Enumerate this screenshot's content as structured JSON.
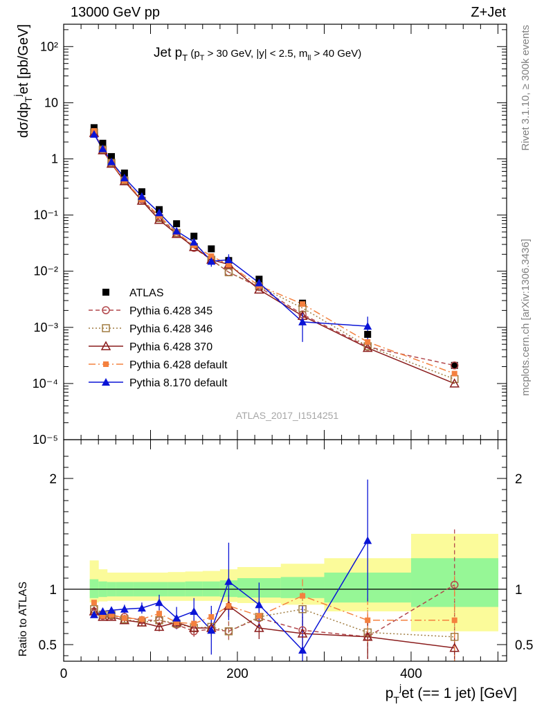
{
  "header": {
    "left": "13000 GeV pp",
    "right": "Z+Jet"
  },
  "side_labels": {
    "rivet": "Rivet 3.1.10, ≥ 300k events",
    "mcplots": "mcplots.cern.ch [arXiv:1306.3436]"
  },
  "watermark": "ATLAS_2017_I1514251",
  "colors": {
    "atlas": "#000000",
    "p345": "#b2474b",
    "p346": "#a07c41",
    "p370": "#8a1c1c",
    "pdefault": "#f4813f",
    "p8": "#0a14d6",
    "band_green": "#96f796",
    "band_yellow": "#fbfb9a"
  },
  "chart_data": [
    {
      "panel": "main",
      "type": "scatter",
      "title": "Jet p_T (p_T > 30 GeV, |y| < 2.5, m_ll > 40 GeV)",
      "ylabel": "dσ/dp_T^j et [pb/GeV]",
      "yscale": "log",
      "ylim": [
        1e-05,
        250
      ],
      "xlim": [
        0,
        510
      ],
      "y_ticks": [
        "10^{-5}",
        "10^{-4}",
        "10^{-3}",
        "10^{-2}",
        "10^{-1}",
        "1",
        "10",
        "10^{2}"
      ],
      "legend_position": "lower-left",
      "x": [
        35,
        45,
        55,
        70,
        90,
        110,
        130,
        150,
        170,
        190,
        225,
        275,
        350,
        450
      ],
      "series": [
        {
          "name": "ATLAS",
          "key": "atlas",
          "style": "data",
          "values": [
            3.6,
            1.9,
            1.1,
            0.56,
            0.26,
            0.125,
            0.07,
            0.042,
            0.025,
            0.0155,
            0.0072,
            0.0027,
            0.00075,
            0.00021
          ]
        },
        {
          "name": "Pythia 6.428 345",
          "key": "p345",
          "style": "circle-dash",
          "values": [
            2.9,
            1.44,
            0.84,
            0.42,
            0.19,
            0.09,
            0.048,
            0.026,
            0.016,
            0.0096,
            0.0052,
            0.0017,
            0.00045,
            0.00021
          ]
        },
        {
          "name": "Pythia 6.428 346",
          "key": "p346",
          "style": "square-dot",
          "values": [
            2.95,
            1.46,
            0.85,
            0.41,
            0.18,
            0.088,
            0.048,
            0.027,
            0.016,
            0.0096,
            0.0054,
            0.0022,
            0.00046,
            0.00012
          ]
        },
        {
          "name": "Pythia 6.428 370",
          "key": "p370",
          "style": "triangle-solid",
          "values": [
            2.9,
            1.42,
            0.82,
            0.4,
            0.18,
            0.082,
            0.046,
            0.027,
            0.016,
            0.0132,
            0.0047,
            0.0016,
            0.00043,
            0.0001
          ]
        },
        {
          "name": "Pythia 6.428 default",
          "key": "pdefault",
          "style": "filled-square-dashdot",
          "values": [
            3.15,
            1.45,
            0.85,
            0.41,
            0.19,
            0.097,
            0.049,
            0.029,
            0.0185,
            0.0131,
            0.0055,
            0.0026,
            0.00055,
            0.00015
          ]
        },
        {
          "name": "Pythia 8.170 default",
          "key": "p8",
          "style": "filled-triangle-solid",
          "values": [
            2.75,
            1.52,
            0.89,
            0.46,
            0.215,
            0.11,
            0.052,
            0.033,
            0.015,
            0.016,
            0.0062,
            0.00125,
            0.00105,
            null
          ],
          "errors": [
            0.06,
            0.05,
            0.04,
            0.02,
            0.012,
            0.008,
            0.006,
            0.004,
            0.003,
            0.004,
            0.0014,
            0.0007,
            0.0005,
            null
          ]
        }
      ]
    },
    {
      "panel": "ratio",
      "type": "line",
      "ylabel": "Ratio to ATLAS",
      "xlabel": "p_T^j et (== 1 jet) [GeV]",
      "ylim": [
        0.35,
        2.35
      ],
      "xlim": [
        0,
        510
      ],
      "x_ticks": [
        0,
        200,
        400
      ],
      "y_ticks": [
        "0.5",
        "1",
        "2"
      ],
      "reference_line": 1,
      "band_edges": [
        30,
        40,
        50,
        60,
        80,
        100,
        120,
        140,
        160,
        180,
        200,
        250,
        300,
        400,
        500
      ],
      "band_inner": [
        [
          0.92,
          1.09
        ],
        [
          0.93,
          1.07
        ],
        [
          0.935,
          1.065
        ],
        [
          0.935,
          1.065
        ],
        [
          0.935,
          1.065
        ],
        [
          0.935,
          1.065
        ],
        [
          0.935,
          1.065
        ],
        [
          0.935,
          1.07
        ],
        [
          0.935,
          1.07
        ],
        [
          0.93,
          1.08
        ],
        [
          0.925,
          1.1
        ],
        [
          0.92,
          1.11
        ],
        [
          0.88,
          1.15
        ],
        [
          0.84,
          1.28
        ]
      ],
      "band_outer": [
        [
          0.88,
          1.26
        ],
        [
          0.89,
          1.18
        ],
        [
          0.895,
          1.15
        ],
        [
          0.895,
          1.15
        ],
        [
          0.895,
          1.15
        ],
        [
          0.895,
          1.15
        ],
        [
          0.895,
          1.155
        ],
        [
          0.895,
          1.16
        ],
        [
          0.895,
          1.165
        ],
        [
          0.885,
          1.18
        ],
        [
          0.875,
          1.2
        ],
        [
          0.86,
          1.23
        ],
        [
          0.8,
          1.28
        ],
        [
          0.62,
          1.5
        ]
      ],
      "x": [
        35,
        45,
        55,
        70,
        90,
        110,
        130,
        150,
        170,
        190,
        225,
        275,
        350,
        450
      ],
      "series": [
        {
          "name": "Pythia 6.428 345",
          "key": "p345",
          "values": [
            0.8,
            0.76,
            0.76,
            0.75,
            0.72,
            0.72,
            0.68,
            0.62,
            0.64,
            0.62,
            0.74,
            0.63,
            0.57,
            1.04
          ],
          "errors": [
            0.02,
            0.02,
            0.02,
            0.02,
            0.03,
            0.04,
            0.04,
            0.05,
            0.07,
            0.09,
            0.1,
            0.15,
            0.2,
            0.5
          ]
        },
        {
          "name": "Pythia 6.428 346",
          "key": "p346",
          "values": [
            0.82,
            0.77,
            0.77,
            0.73,
            0.7,
            0.72,
            0.69,
            0.65,
            0.66,
            0.62,
            0.75,
            0.82,
            0.61,
            0.57
          ],
          "errors": [
            0.02,
            0.02,
            0.02,
            0.02,
            0.03,
            0.04,
            0.04,
            0.05,
            0.07,
            0.09,
            0.1,
            0.15,
            0.2,
            0.3
          ]
        },
        {
          "name": "Pythia 6.428 370",
          "key": "p370",
          "values": [
            0.8,
            0.75,
            0.75,
            0.72,
            0.7,
            0.66,
            0.7,
            0.65,
            0.65,
            0.85,
            0.65,
            0.6,
            0.57,
            0.47
          ],
          "errors": [
            0.02,
            0.02,
            0.02,
            0.02,
            0.03,
            0.04,
            0.04,
            0.05,
            0.07,
            0.1,
            0.1,
            0.15,
            0.2,
            0.12
          ]
        },
        {
          "name": "Pythia 6.428 default",
          "key": "pdefault",
          "values": [
            0.88,
            0.76,
            0.77,
            0.74,
            0.73,
            0.78,
            0.7,
            0.69,
            0.75,
            0.85,
            0.76,
            0.94,
            0.72,
            0.72
          ],
          "errors": [
            0.02,
            0.02,
            0.02,
            0.02,
            0.03,
            0.04,
            0.04,
            0.05,
            0.07,
            0.09,
            0.1,
            0.15,
            0.2,
            0.4
          ]
        },
        {
          "name": "Pythia 8.170 default",
          "key": "p8",
          "values": [
            0.77,
            0.8,
            0.81,
            0.82,
            0.83,
            0.88,
            0.74,
            0.8,
            0.63,
            1.07,
            0.86,
            0.45,
            1.44,
            null
          ],
          "errors": [
            0.02,
            0.03,
            0.03,
            0.04,
            0.05,
            0.07,
            0.1,
            0.12,
            0.22,
            0.35,
            0.2,
            0.4,
            0.55,
            null
          ]
        }
      ]
    }
  ]
}
